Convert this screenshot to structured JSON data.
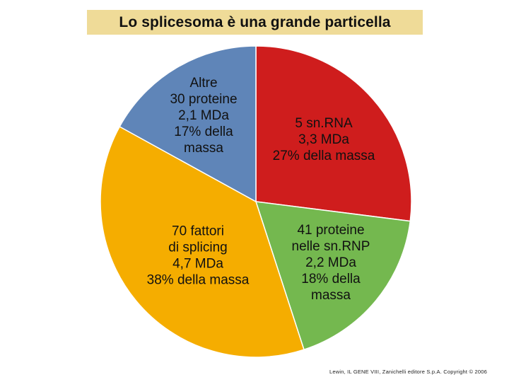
{
  "title": "Lo splicesoma è una grande particella",
  "footer": "Lewin, IL GENE VIII, Zanichelli editore S.p.A. Copyright © 2006",
  "chart_data": {
    "type": "pie",
    "title": "Lo splicesoma è una grande particella",
    "start_angle_deg": 0,
    "direction": "clockwise",
    "slices": [
      {
        "key": "snrna",
        "value": 27,
        "color": "#cf1d1d",
        "label_lines": [
          "5 sn.RNA",
          "3,3 MDa",
          "27% della massa"
        ]
      },
      {
        "key": "snrnp-proteins",
        "value": 18,
        "color": "#74b84f",
        "label_lines": [
          "41 proteine",
          "nelle sn.RNP",
          "2,2 MDa",
          "18% della",
          "massa"
        ]
      },
      {
        "key": "splicing-factors",
        "value": 38,
        "color": "#f5ad00",
        "label_lines": [
          "70 fattori",
          "di splicing",
          "4,7 MDa",
          "38% della massa"
        ]
      },
      {
        "key": "other-proteins",
        "value": 17,
        "color": "#5f85b8",
        "label_lines": [
          "Altre",
          "30 proteine",
          "2,1 MDa",
          "17% della",
          "massa"
        ]
      }
    ]
  }
}
